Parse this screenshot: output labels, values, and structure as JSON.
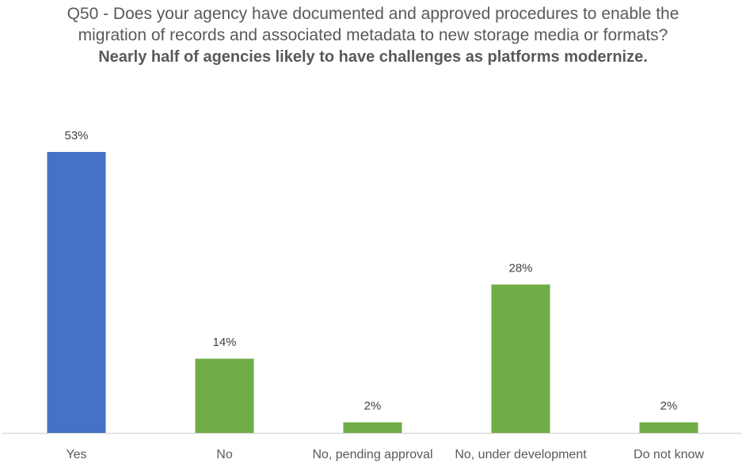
{
  "chart_data": {
    "type": "bar",
    "title": "Q50 - Does your agency have documented and approved procedures to enable the migration of records and associated metadata to new storage media or formats?",
    "subtitle": "Nearly half of agencies likely to have challenges as platforms modernize.",
    "categories": [
      "Yes",
      "No",
      "No, pending approval",
      "No, under development",
      "Do not know"
    ],
    "values": [
      53,
      14,
      2,
      28,
      2
    ],
    "data_labels": [
      "53%",
      "14%",
      "2%",
      "28%",
      "2%"
    ],
    "colors": [
      "#4472C4",
      "#70AD47",
      "#70AD47",
      "#70AD47",
      "#70AD47"
    ],
    "xlabel": "",
    "ylabel": "",
    "ylim": [
      0,
      53
    ],
    "grid": false,
    "legend": "none"
  }
}
